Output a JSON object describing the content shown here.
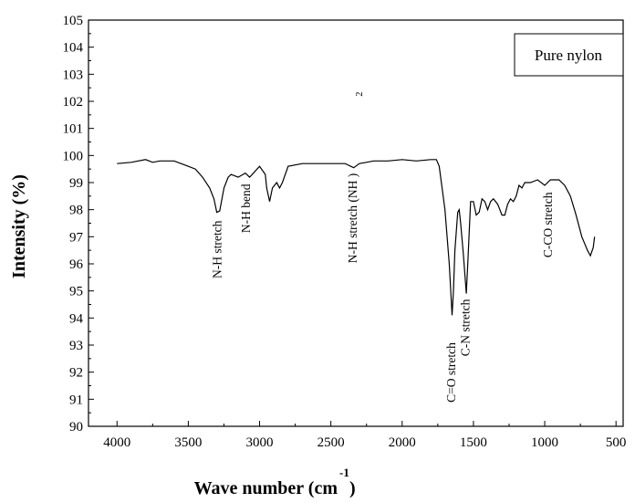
{
  "chart_data": {
    "type": "line",
    "title": "",
    "xlabel": "Wave number (cm",
    "xlabel_superscript": "-1",
    "xlabel_close": ")",
    "ylabel": "Intensity (%)",
    "xlim": [
      4200,
      450
    ],
    "ylim": [
      90,
      105
    ],
    "x_ticks": [
      4000,
      3500,
      3000,
      2500,
      2000,
      1500,
      1000,
      500
    ],
    "y_ticks": [
      90,
      91,
      92,
      93,
      94,
      95,
      96,
      97,
      98,
      99,
      100,
      101,
      102,
      103,
      104,
      105
    ],
    "grid": false,
    "legend": {
      "position": "top-right",
      "entries": [
        "Pure nylon"
      ]
    },
    "series": [
      {
        "name": "Pure nylon",
        "x": [
          4000,
          3900,
          3800,
          3750,
          3700,
          3600,
          3500,
          3450,
          3400,
          3350,
          3320,
          3300,
          3280,
          3250,
          3220,
          3200,
          3150,
          3100,
          3070,
          3000,
          2960,
          2950,
          2930,
          2910,
          2880,
          2860,
          2840,
          2800,
          2700,
          2600,
          2500,
          2400,
          2360,
          2340,
          2300,
          2250,
          2200,
          2100,
          2000,
          1900,
          1800,
          1760,
          1740,
          1700,
          1670,
          1650,
          1640,
          1630,
          1610,
          1600,
          1590,
          1570,
          1550,
          1540,
          1520,
          1500,
          1480,
          1460,
          1440,
          1420,
          1400,
          1380,
          1360,
          1330,
          1300,
          1280,
          1260,
          1240,
          1220,
          1200,
          1180,
          1160,
          1140,
          1100,
          1050,
          1000,
          960,
          930,
          900,
          860,
          820,
          780,
          740,
          700,
          680,
          660,
          650
        ],
        "y": [
          99.7,
          99.75,
          99.85,
          99.75,
          99.8,
          99.8,
          99.6,
          99.5,
          99.2,
          98.8,
          98.4,
          97.9,
          97.95,
          98.8,
          99.2,
          99.3,
          99.2,
          99.35,
          99.2,
          99.6,
          99.3,
          98.8,
          98.3,
          98.8,
          99.0,
          98.8,
          99.0,
          99.6,
          99.7,
          99.7,
          99.7,
          99.7,
          99.6,
          99.55,
          99.7,
          99.75,
          99.8,
          99.8,
          99.85,
          99.8,
          99.85,
          99.85,
          99.6,
          98.0,
          96.0,
          94.1,
          95.0,
          96.5,
          97.9,
          98.0,
          97.5,
          96.3,
          94.9,
          96.0,
          98.3,
          98.3,
          97.8,
          97.9,
          98.4,
          98.3,
          98.0,
          98.3,
          98.4,
          98.2,
          97.8,
          97.8,
          98.2,
          98.4,
          98.3,
          98.5,
          98.9,
          98.8,
          99.0,
          99.0,
          99.1,
          98.9,
          99.1,
          99.1,
          99.1,
          98.9,
          98.5,
          97.8,
          97.0,
          96.5,
          96.3,
          96.6,
          97.0
        ]
      }
    ],
    "annotations": [
      {
        "text": "N-H stretch",
        "x": 3300,
        "y": 97.8
      },
      {
        "text": "N-H bend",
        "x": 3100,
        "y": 99.15
      },
      {
        "text": "N-H stretch (NH )",
        "sub": "2",
        "x": 2350,
        "y": 99.55
      },
      {
        "text": "C=O stretch",
        "x": 1660,
        "y": 93.3
      },
      {
        "text": "C-N stretch",
        "x": 1560,
        "y": 94.9
      },
      {
        "text": "C-CO stretch",
        "x": 980,
        "y": 98.85
      }
    ]
  }
}
